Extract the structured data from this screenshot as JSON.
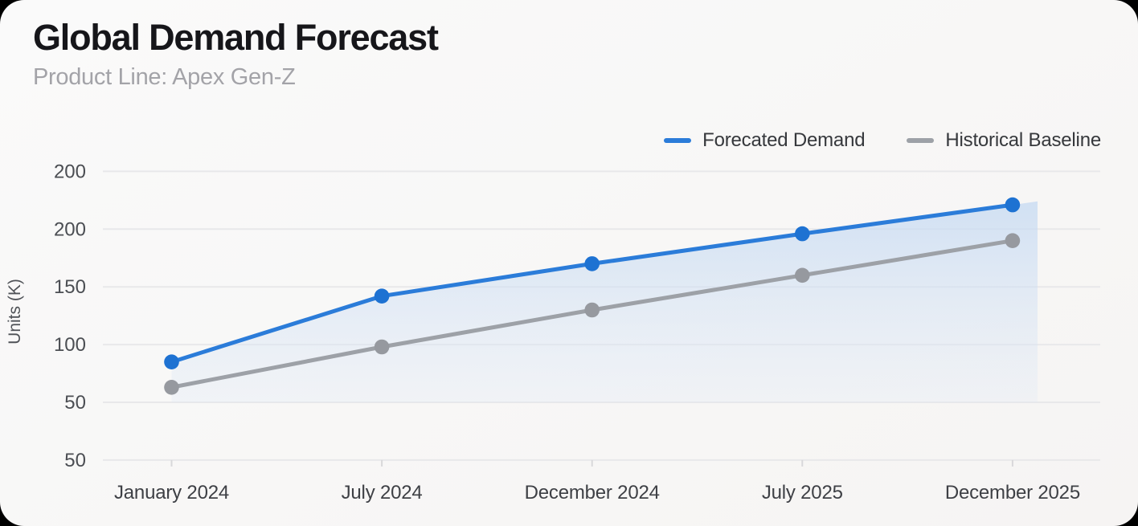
{
  "header": {
    "title": "Global Demand Forecast",
    "subtitle": "Product Line: Apex Gen-Z"
  },
  "legend": {
    "items": [
      {
        "label": "Forecated Demand",
        "color": "#2b7cd9"
      },
      {
        "label": "Historical Baseline",
        "color": "#9da1a7"
      }
    ]
  },
  "chart_data": {
    "type": "line",
    "title": "Global Demand Forecast",
    "subtitle": "Product Line: Apex Gen-Z",
    "xlabel": "",
    "ylabel": "Units (K)",
    "categories": [
      "January 2024",
      "July 2024",
      "December 2024",
      "July 2025",
      "December 2025"
    ],
    "series": [
      {
        "name": "Forecated Demand",
        "color": "#2b7cd9",
        "point_color": "#1e72d2",
        "values": [
          85,
          142,
          170,
          196,
          221
        ],
        "area_fill": true
      },
      {
        "name": "Historical Baseline",
        "color": "#9da1a7",
        "point_color": "#96999f",
        "values": [
          63,
          98,
          130,
          160,
          190
        ],
        "area_fill": false
      }
    ],
    "y_tick_labels": [
      "200",
      "200",
      "150",
      "100",
      "50",
      "50"
    ],
    "grid": "horizontal",
    "gridline_color": "#e8e8ea",
    "tick_label_color": "#4b4e53",
    "x_label_color": "#3e4045",
    "legend_position": "top-right",
    "area_fill_top_color": "rgba(196,217,242,0.75)",
    "area_fill_bottom_color": "rgba(222,232,246,0.28)"
  }
}
